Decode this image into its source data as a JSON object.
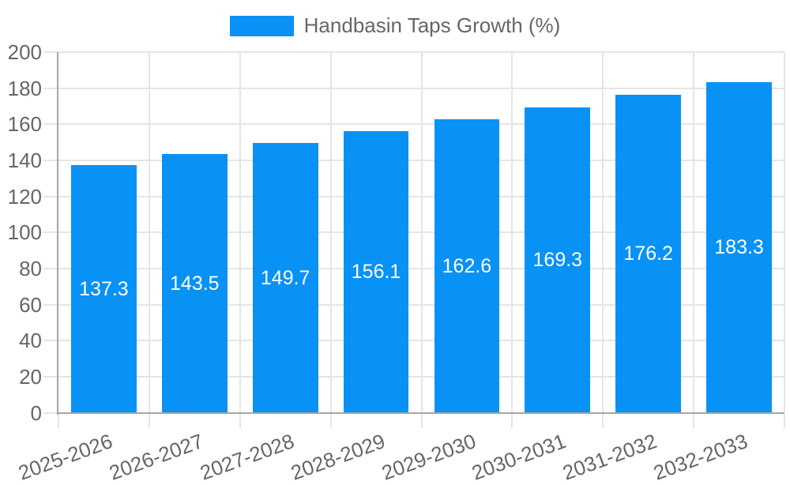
{
  "chart_data": {
    "type": "bar",
    "title": "Handbasin Taps Growth (%)",
    "legend": [
      "Handbasin Taps Growth (%)"
    ],
    "legend_position": "top",
    "categories": [
      "2025-2026",
      "2026-2027",
      "2027-2028",
      "2028-2029",
      "2029-2030",
      "2030-2031",
      "2031-2032",
      "2032-2033"
    ],
    "values": [
      137.3,
      143.5,
      149.7,
      156.1,
      162.6,
      169.3,
      176.2,
      183.3
    ],
    "value_labels": [
      "137.3",
      "143.5",
      "149.7",
      "156.1",
      "162.6",
      "169.3",
      "176.2",
      "183.3"
    ],
    "xlabel": "",
    "ylabel": "",
    "ylim": [
      0,
      200
    ],
    "ytick_step": 20,
    "ytick_labels": [
      "0",
      "20",
      "40",
      "60",
      "80",
      "100",
      "120",
      "140",
      "160",
      "180",
      "200"
    ],
    "grid": true,
    "x_label_rotation": -20,
    "colors": {
      "bar": "#0992F5",
      "text": "#666666",
      "grid": "#E5E5E5",
      "axis": "#A6A6A6",
      "value_label": "#FFFFFF",
      "background": "#FFFFFF"
    }
  }
}
